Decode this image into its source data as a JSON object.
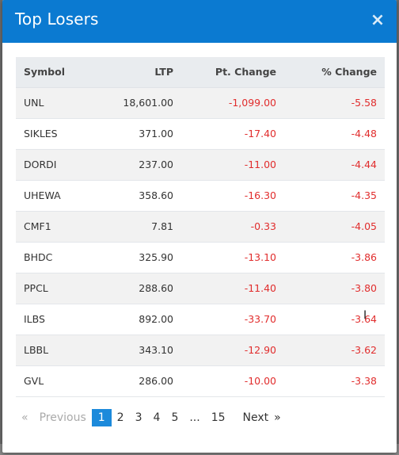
{
  "modal": {
    "title": "Top Losers",
    "close_icon": "×"
  },
  "table": {
    "headers": [
      "Symbol",
      "LTP",
      "Pt. Change",
      "% Change"
    ],
    "rows": [
      {
        "symbol": "UNL",
        "ltp": "18,601.00",
        "pt_change": "-1,099.00",
        "pct_change": "-5.58"
      },
      {
        "symbol": "SIKLES",
        "ltp": "371.00",
        "pt_change": "-17.40",
        "pct_change": "-4.48"
      },
      {
        "symbol": "DORDI",
        "ltp": "237.00",
        "pt_change": "-11.00",
        "pct_change": "-4.44"
      },
      {
        "symbol": "UHEWA",
        "ltp": "358.60",
        "pt_change": "-16.30",
        "pct_change": "-4.35"
      },
      {
        "symbol": "CMF1",
        "ltp": "7.81",
        "pt_change": "-0.33",
        "pct_change": "-4.05"
      },
      {
        "symbol": "BHDC",
        "ltp": "325.90",
        "pt_change": "-13.10",
        "pct_change": "-3.86"
      },
      {
        "symbol": "PPCL",
        "ltp": "288.60",
        "pt_change": "-11.40",
        "pct_change": "-3.80"
      },
      {
        "symbol": "ILBS",
        "ltp": "892.00",
        "pt_change": "-33.70",
        "pct_change": "-3.64"
      },
      {
        "symbol": "LBBL",
        "ltp": "343.10",
        "pt_change": "-12.90",
        "pct_change": "-3.62"
      },
      {
        "symbol": "GVL",
        "ltp": "286.00",
        "pt_change": "-10.00",
        "pct_change": "-3.38"
      }
    ]
  },
  "pagination": {
    "prev_arrow": "«",
    "previous": "Previous",
    "pages": [
      "1",
      "2",
      "3",
      "4",
      "5"
    ],
    "ellipsis": "...",
    "last_page": "15",
    "next": "Next",
    "next_arrow": "»",
    "current": "1"
  },
  "colors": {
    "header_bg": "#0b7ad1",
    "negative": "#e12d2d",
    "active_page": "#1c8adb"
  }
}
